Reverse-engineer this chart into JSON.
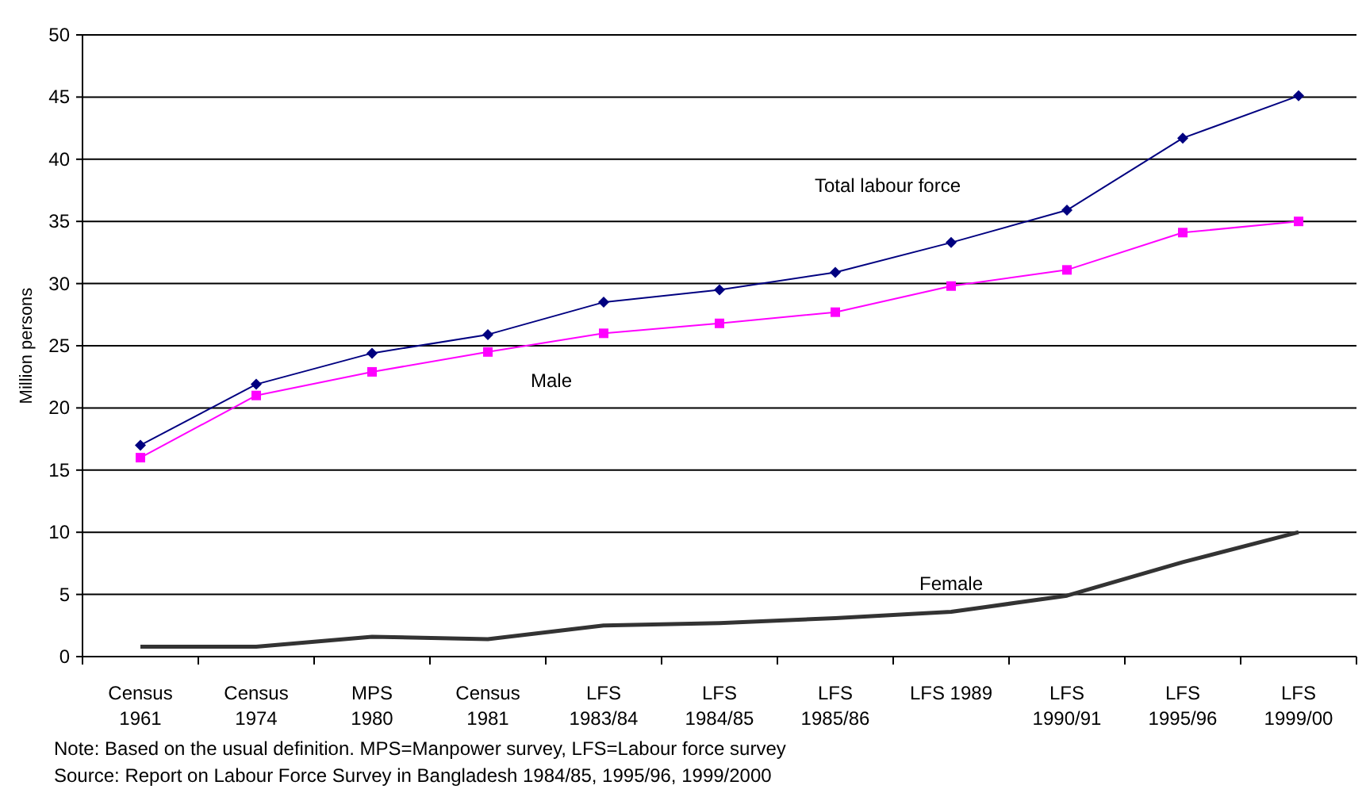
{
  "chart_data": {
    "type": "line",
    "ylabel": "Million persons",
    "categories": [
      "Census\n1961",
      "Census\n1974",
      "MPS\n1980",
      "Census\n1981",
      "LFS\n1983/84",
      "LFS\n1984/85",
      "LFS\n1985/86",
      "LFS   1989",
      "LFS\n1990/91",
      "LFS\n1995/96",
      "LFS\n1999/00"
    ],
    "series": [
      {
        "name": "Total labour force",
        "color": "#000080",
        "marker": "diamond",
        "values": [
          17.0,
          21.9,
          24.4,
          25.9,
          28.5,
          29.5,
          30.9,
          33.3,
          35.9,
          41.7,
          45.1
        ]
      },
      {
        "name": "Male",
        "color": "#ff00ff",
        "marker": "square",
        "values": [
          16.0,
          21.0,
          22.9,
          24.5,
          26.0,
          26.8,
          27.7,
          29.8,
          31.1,
          34.1,
          35.0
        ]
      },
      {
        "name": "Female",
        "color": "#333333",
        "marker": "none",
        "values": [
          0.8,
          0.8,
          1.6,
          1.4,
          2.5,
          2.7,
          3.1,
          3.6,
          4.9,
          7.6,
          10.0
        ]
      }
    ],
    "ylim": [
      0,
      50
    ],
    "yticks": [
      0,
      5,
      10,
      15,
      20,
      25,
      30,
      35,
      40,
      45,
      50
    ],
    "grid": "y",
    "annotations": [
      "Note: Based on the usual definition. MPS=Manpower survey, LFS=Labour force survey",
      "Source: Report on Labour Force Survey in Bangladesh 1984/85, 1995/96, 1999/2000"
    ]
  }
}
